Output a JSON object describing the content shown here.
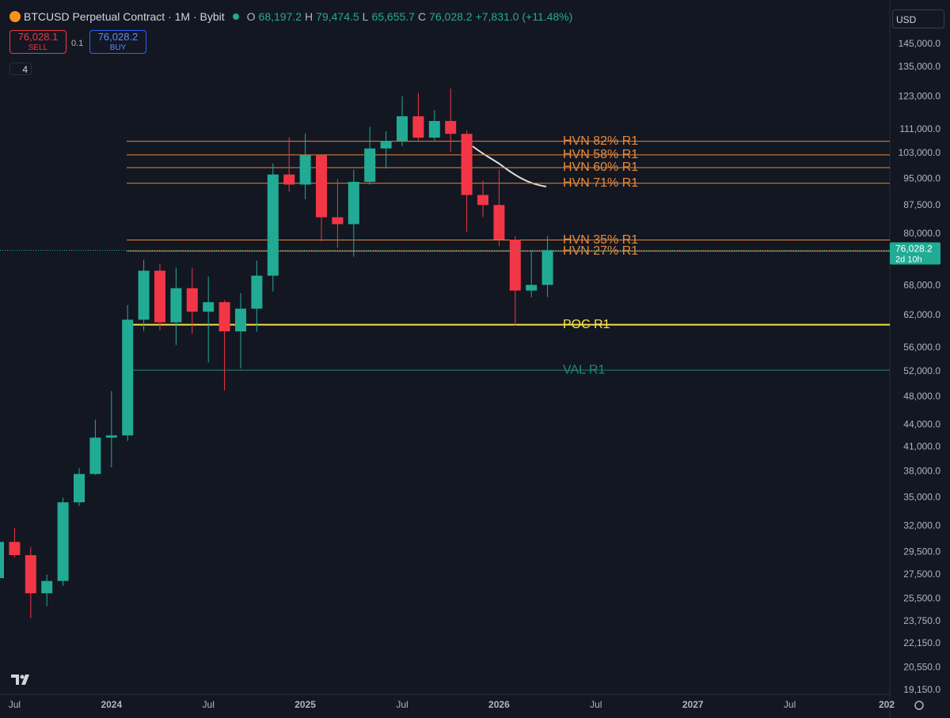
{
  "header": {
    "symbol": "BTCUSD Perpetual Contract · 1M · Bybit",
    "o_label": "O",
    "o": "68,197.2",
    "h_label": "H",
    "h": "79,474.5",
    "l_label": "L",
    "l": "65,655.7",
    "c_label": "C",
    "c": "76,028.2",
    "change": "+7,831.0 (+11.48%)",
    "sell_price": "76,028.1",
    "sell": "SELL",
    "qty": "0.1",
    "buy_price": "76,028.2",
    "buy": "BUY",
    "indicators": "4",
    "currency": "USD"
  },
  "chart_data": {
    "type": "candlestick",
    "log_scale": true,
    "up_color": "#22ab94",
    "down_color": "#f23645",
    "x": [
      "2023-06",
      "2023-07",
      "2023-08",
      "2023-09",
      "2023-10",
      "2023-11",
      "2023-12",
      "2024-01",
      "2024-02",
      "2024-03",
      "2024-04",
      "2024-05",
      "2024-06",
      "2024-07",
      "2024-08",
      "2024-09",
      "2024-10",
      "2024-11",
      "2024-12",
      "2025-01",
      "2025-02",
      "2025-03",
      "2025-04",
      "2025-05",
      "2025-06",
      "2025-07",
      "2025-08",
      "2025-09",
      "2025-10",
      "2025-11",
      "2025-12",
      "2026-01",
      "2026-02",
      "2026-03",
      "2026-04"
    ],
    "open": [
      27200,
      30470,
      29230,
      25940,
      26960,
      34500,
      37700,
      42250,
      42550,
      61150,
      71300,
      60650,
      67500,
      62700,
      64600,
      58950,
      63300,
      70200,
      96400,
      93400,
      102400,
      84300,
      82500,
      94200,
      104600,
      107100,
      115700,
      108200,
      114000,
      109500,
      90400,
      87600,
      78600,
      67000,
      68197.2
    ],
    "high": [
      31400,
      31800,
      30000,
      27500,
      35000,
      38400,
      44700,
      48900,
      64000,
      73800,
      72800,
      72000,
      72000,
      70000,
      65000,
      66500,
      73600,
      99800,
      108300,
      109600,
      102700,
      95000,
      97900,
      111900,
      110400,
      123200,
      124500,
      117900,
      126200,
      110600,
      94600,
      97900,
      79500,
      76000,
      79474.5
    ],
    "low": [
      24800,
      29000,
      24000,
      24900,
      26550,
      34100,
      37600,
      38500,
      41800,
      59000,
      59200,
      56500,
      58500,
      53500,
      49000,
      52500,
      58900,
      66800,
      91300,
      89200,
      78200,
      76600,
      74500,
      93400,
      98200,
      105300,
      107300,
      107300,
      103500,
      80600,
      84400,
      77000,
      60000,
      65600,
      65655.7
    ],
    "close": [
      30470,
      29230,
      25940,
      26960,
      34500,
      37700,
      42250,
      42550,
      61150,
      71300,
      60650,
      67500,
      62700,
      64600,
      58950,
      63300,
      70200,
      96400,
      93400,
      102400,
      84300,
      82500,
      94200,
      104600,
      107100,
      115700,
      108200,
      114000,
      109500,
      90400,
      87600,
      78600,
      67000,
      68200,
      76028.2
    ],
    "xlim": [
      "2023-06",
      "2028-01"
    ],
    "xticks": [
      {
        "value": "2023-07",
        "label": "Jul"
      },
      {
        "value": "2024-01",
        "label": "2024"
      },
      {
        "value": "2024-07",
        "label": "Jul"
      },
      {
        "value": "2025-01",
        "label": "2025"
      },
      {
        "value": "2025-07",
        "label": "Jul"
      },
      {
        "value": "2026-01",
        "label": "2026"
      },
      {
        "value": "2026-07",
        "label": "Jul"
      },
      {
        "value": "2027-01",
        "label": "2027"
      },
      {
        "value": "2027-07",
        "label": "Jul"
      },
      {
        "value": "2028-01",
        "label": "202"
      }
    ],
    "ylim": [
      18900,
      162500
    ],
    "yticks": [
      {
        "value": 145000,
        "label": "145,000.0"
      },
      {
        "value": 135000,
        "label": "135,000.0"
      },
      {
        "value": 123000,
        "label": "123,000.0"
      },
      {
        "value": 111000,
        "label": "111,000.0"
      },
      {
        "value": 103000,
        "label": "103,000.0"
      },
      {
        "value": 95000,
        "label": "95,000.0"
      },
      {
        "value": 87500,
        "label": "87,500.0"
      },
      {
        "value": 80000,
        "label": "80,000.0"
      },
      {
        "value": 68000,
        "label": "68,000.0"
      },
      {
        "value": 62000,
        "label": "62,000.0"
      },
      {
        "value": 56000,
        "label": "56,000.0"
      },
      {
        "value": 52000,
        "label": "52,000.0"
      },
      {
        "value": 48000,
        "label": "48,000.0"
      },
      {
        "value": 44000,
        "label": "44,000.0"
      },
      {
        "value": 41000,
        "label": "41,000.0"
      },
      {
        "value": 38000,
        "label": "38,000.0"
      },
      {
        "value": 35000,
        "label": "35,000.0"
      },
      {
        "value": 32000,
        "label": "32,000.0"
      },
      {
        "value": 29500,
        "label": "29,500.0"
      },
      {
        "value": 27500,
        "label": "27,500.0"
      },
      {
        "value": 25500,
        "label": "25,500.0"
      },
      {
        "value": 23750,
        "label": "23,750.0"
      },
      {
        "value": 22150,
        "label": "22,150.0"
      },
      {
        "value": 20550,
        "label": "20,550.0"
      },
      {
        "value": 19150,
        "label": "19,150.0"
      }
    ],
    "levels": [
      {
        "label": "HVN 82% R1",
        "value": 107000,
        "color": "#e8893b"
      },
      {
        "label": "HVN 58% R1",
        "value": 102500,
        "color": "#e8893b"
      },
      {
        "label": "HVN 60% R1",
        "value": 98500,
        "color": "#e8893b"
      },
      {
        "label": "HVN 71% R1",
        "value": 93800,
        "color": "#e8893b"
      },
      {
        "label": "HVN 35% R1",
        "value": 78500,
        "color": "#e8893b"
      },
      {
        "label": "HVN 27% R1",
        "value": 75800,
        "color": "#e8893b"
      },
      {
        "label": "POC R1",
        "value": 60200,
        "color": "#f3e24a"
      },
      {
        "label": "VAL R1",
        "value": 52200,
        "color": "#1f8a74"
      }
    ],
    "price_tag": {
      "label": "76,028.2",
      "countdown": "2d 10h"
    }
  }
}
